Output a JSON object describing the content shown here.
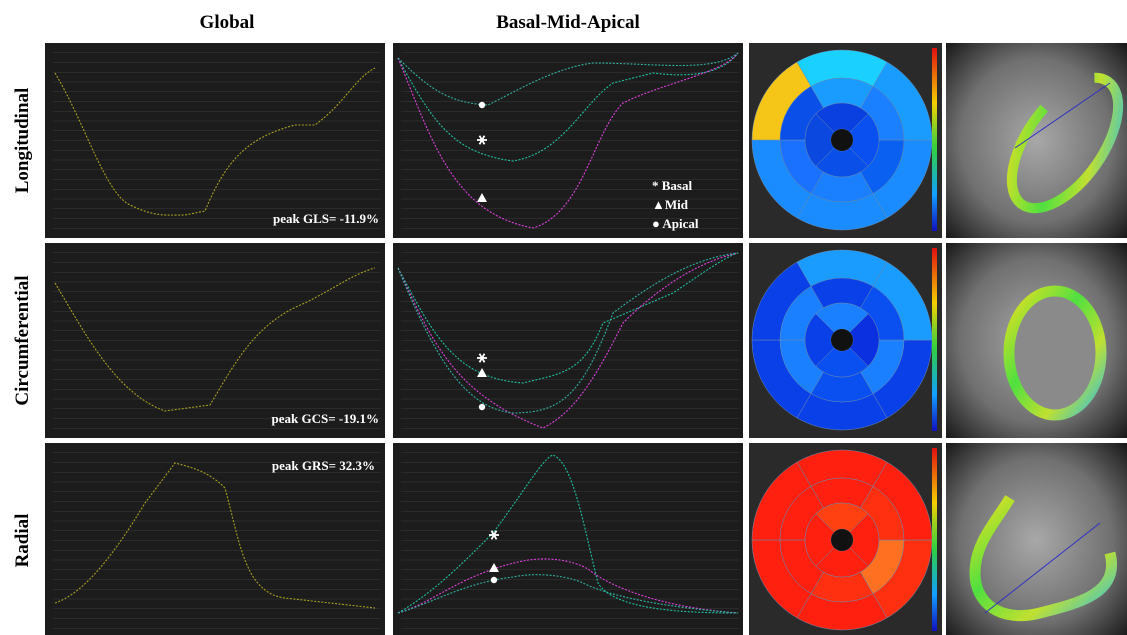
{
  "headers": {
    "global": "Global",
    "segmental": "Basal-Mid-Apical"
  },
  "rows": [
    {
      "label": "Longitudinal",
      "peak": "peak GLS= -11.9%"
    },
    {
      "label": "Circumferential",
      "peak": "peak GCS= -19.1%"
    },
    {
      "label": "Radial",
      "peak": "peak GRS= 32.3%"
    }
  ],
  "legend": [
    "* Basal",
    "▲Mid",
    "● Apical"
  ]
}
